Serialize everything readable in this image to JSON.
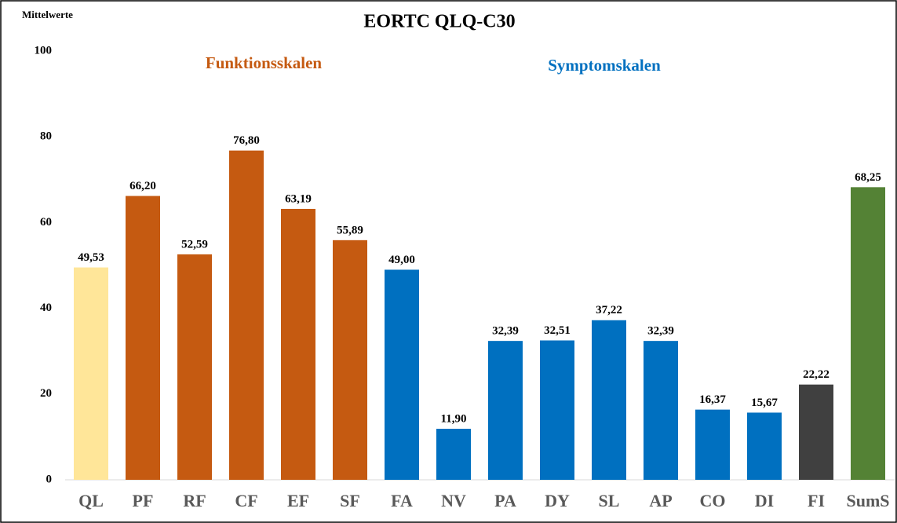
{
  "chart_data": {
    "type": "bar",
    "title": "EORTC QLQ-C30",
    "y_label": "Mittelwerte",
    "annotations": [
      "Funktionsskalen",
      "Symptomskalen"
    ],
    "categories": [
      "QL",
      "PF",
      "RF",
      "CF",
      "EF",
      "SF",
      "FA",
      "NV",
      "PA",
      "DY",
      "SL",
      "AP",
      "CO",
      "DI",
      "FI",
      "SumS"
    ],
    "values": [
      49.53,
      66.2,
      52.59,
      76.8,
      63.19,
      55.89,
      49.0,
      11.9,
      32.39,
      32.51,
      37.22,
      32.39,
      16.37,
      15.67,
      22.22,
      68.25
    ],
    "value_labels": [
      "49,53",
      "66,20",
      "52,59",
      "76,80",
      "63,19",
      "55,89",
      "49,00",
      "11,90",
      "32,39",
      "32,51",
      "37,22",
      "32,39",
      "16,37",
      "15,67",
      "22,22",
      "68,25"
    ],
    "colors": [
      "#ffe699",
      "#c55a11",
      "#c55a11",
      "#c55a11",
      "#c55a11",
      "#c55a11",
      "#0070c0",
      "#0070c0",
      "#0070c0",
      "#0070c0",
      "#0070c0",
      "#0070c0",
      "#0070c0",
      "#0070c0",
      "#404040",
      "#548235"
    ],
    "annotation_colors": [
      "#c55a11",
      "#0070c0"
    ],
    "ylim": [
      0,
      100
    ],
    "yticks": [
      0,
      20,
      40,
      60,
      80,
      100
    ],
    "grid": false
  }
}
